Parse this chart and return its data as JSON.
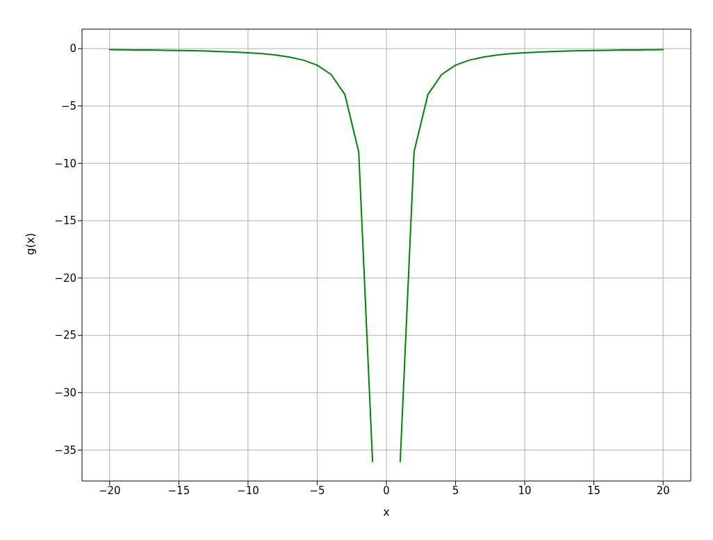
{
  "chart_data": {
    "type": "line",
    "xlabel": "x",
    "ylabel": "g(x)",
    "x": [
      -20,
      -19,
      -18,
      -17,
      -16,
      -15,
      -14,
      -13,
      -12,
      -11,
      -10,
      -9,
      -8,
      -7,
      -6,
      -5,
      -4,
      -3,
      -2,
      -1,
      0,
      1,
      2,
      3,
      4,
      5,
      6,
      7,
      8,
      9,
      10,
      11,
      12,
      13,
      14,
      15,
      16,
      17,
      18,
      19,
      20
    ],
    "series": [
      {
        "color": "#008000",
        "values": [
          -0.09,
          -0.1,
          -0.11,
          -0.12,
          -0.14,
          -0.16,
          -0.18,
          -0.21,
          -0.25,
          -0.3,
          -0.36,
          -0.44,
          -0.56,
          -0.73,
          -1,
          -1.44,
          -2.25,
          -4,
          -9,
          -36,
          null,
          -36,
          -9,
          -4,
          -2.25,
          -1.44,
          -1,
          -0.73,
          -0.56,
          -0.44,
          -0.36,
          -0.3,
          -0.25,
          -0.21,
          -0.18,
          -0.16,
          -0.14,
          -0.12,
          -0.11,
          -0.1,
          -0.09
        ]
      }
    ],
    "xlim": [
      -22,
      22
    ],
    "xticks": [
      -20,
      -15,
      -10,
      -5,
      0,
      5,
      10,
      15,
      20
    ],
    "ylim": [
      -37.7,
      1.7
    ],
    "yticks": [
      -35,
      -30,
      -25,
      -20,
      -15,
      -10,
      -5,
      0
    ],
    "grid": true,
    "legend": false,
    "marker": "none",
    "line_style": "solid"
  }
}
